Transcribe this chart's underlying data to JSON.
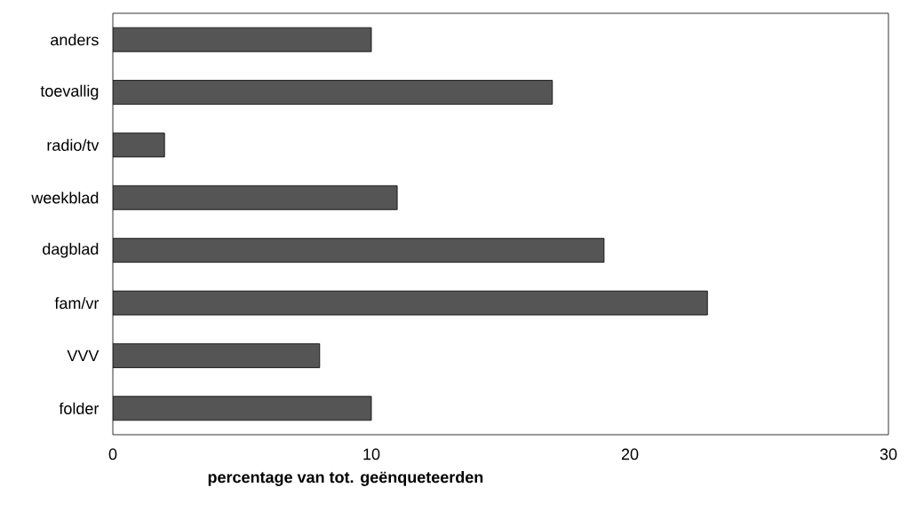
{
  "chart_data": {
    "type": "bar",
    "orientation": "horizontal",
    "xlabel": "percentage van tot. geënqueteerden",
    "categories": [
      "anders",
      "toevallig",
      "radio/tv",
      "weekblad",
      "dagblad",
      "fam/vr",
      "VVV",
      "folder"
    ],
    "values": [
      10,
      17,
      2,
      11,
      19,
      23,
      8,
      10
    ],
    "color": "#555555",
    "xlim": [
      0,
      30
    ],
    "xticks": [
      0,
      10,
      20,
      30
    ],
    "grid": false
  }
}
